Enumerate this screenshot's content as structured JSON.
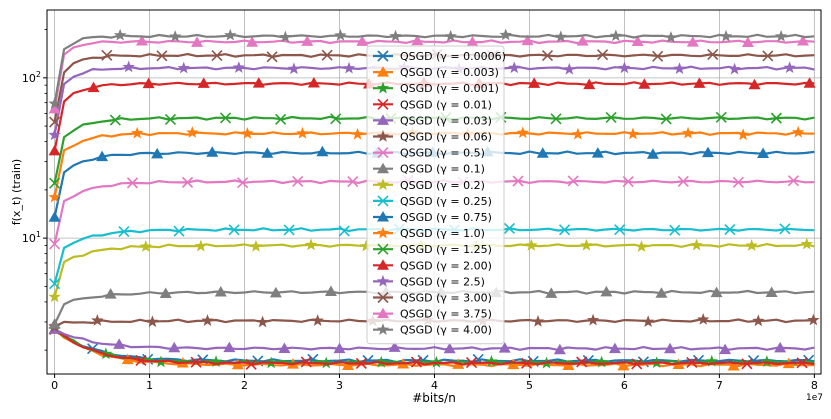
{
  "chart_data": {
    "type": "line",
    "title": "",
    "xlabel": "#bits/n",
    "ylabel": "f(x_t) (train)",
    "y_scale": "log",
    "x_multiplier_label": "1e7",
    "xlim": [
      -0.08,
      8.07
    ],
    "ylim": [
      1.42,
      265
    ],
    "x_ticks": [
      0,
      1,
      2,
      3,
      4,
      5,
      6,
      7,
      8
    ],
    "x_tick_labels": [
      "0",
      "1",
      "2",
      "3",
      "4",
      "5",
      "6",
      "7",
      "8"
    ],
    "y_major_ticks": [
      10,
      100
    ],
    "y_major_tick_labels": [
      "10^1",
      "10^2"
    ],
    "grid": true,
    "legend_position": "center",
    "series": [
      {
        "name": "QSGD (γ = 0.0006)",
        "color": "#1f77b4",
        "marker": "x",
        "start": 2.7,
        "end": 1.72,
        "saturation": 2.0,
        "decay": true,
        "x_end": 8.0
      },
      {
        "name": "QSGD (γ = 0.003)",
        "color": "#ff7f0e",
        "marker": "triangle",
        "start": 2.7,
        "end": 1.62,
        "saturation": 2.0,
        "decay": true,
        "x_end": 8.0
      },
      {
        "name": "QSGD (γ = 0.001)",
        "color": "#2ca02c",
        "marker": "star",
        "start": 2.7,
        "end": 1.68,
        "saturation": 2.0,
        "decay": true,
        "x_end": 8.0
      },
      {
        "name": "QSGD (γ = 0.01)",
        "color": "#d62728",
        "marker": "x",
        "start": 2.7,
        "end": 1.66,
        "saturation": 2.0,
        "decay": true,
        "x_end": 8.0
      },
      {
        "name": "QSGD (γ = 0.03)",
        "color": "#9467bd",
        "marker": "triangle",
        "start": 2.7,
        "end": 2.05,
        "saturation": 2.0,
        "decay": true,
        "x_end": 8.0
      },
      {
        "name": "QSGD (γ = 0.06)",
        "color": "#8c564b",
        "marker": "star",
        "start": 2.8,
        "end": 3.05,
        "saturation": 1.5,
        "decay": false,
        "x_end": 8.0
      },
      {
        "name": "QSGD (γ = 0.5)",
        "color": "#e377c2",
        "marker": "x",
        "start": 9.2,
        "end": 22.5,
        "saturation": 0.9,
        "decay": false,
        "x_end": 8.0
      },
      {
        "name": "QSGD (γ = 0.1)",
        "color": "#7f7f7f",
        "marker": "triangle",
        "start": 2.9,
        "end": 4.6,
        "saturation": 1.2,
        "decay": false,
        "x_end": 8.0
      },
      {
        "name": "QSGD (γ = 0.2)",
        "color": "#bcbd22",
        "marker": "star",
        "start": 4.3,
        "end": 9.0,
        "saturation": 1.0,
        "decay": false,
        "x_end": 8.0
      },
      {
        "name": "QSGD (γ = 0.25)",
        "color": "#17becf",
        "marker": "x",
        "start": 5.2,
        "end": 11.3,
        "saturation": 1.0,
        "decay": false,
        "x_end": 8.0
      },
      {
        "name": "QSGD (γ = 0.75)",
        "color": "#1f77b4",
        "marker": "triangle",
        "start": 13.5,
        "end": 34.0,
        "saturation": 0.8,
        "decay": false,
        "x_end": 8.0
      },
      {
        "name": "QSGD (γ = 1.0)",
        "color": "#ff7f0e",
        "marker": "star",
        "start": 18.0,
        "end": 45.0,
        "saturation": 0.7,
        "decay": false,
        "x_end": 8.0
      },
      {
        "name": "QSGD (γ = 1.25)",
        "color": "#2ca02c",
        "marker": "x",
        "start": 22.0,
        "end": 56.0,
        "saturation": 0.7,
        "decay": false,
        "x_end": 8.0
      },
      {
        "name": "QSGD (γ = 2.00)",
        "color": "#d62728",
        "marker": "triangle",
        "start": 35.0,
        "end": 92.0,
        "saturation": 0.6,
        "decay": false,
        "x_end": 8.0
      },
      {
        "name": "QSGD (γ = 2.5)",
        "color": "#9467bd",
        "marker": "star",
        "start": 44.0,
        "end": 115.0,
        "saturation": 0.5,
        "decay": false,
        "x_end": 8.0
      },
      {
        "name": "QSGD (γ = 3.00)",
        "color": "#8c564b",
        "marker": "x",
        "start": 53.0,
        "end": 138.0,
        "saturation": 0.5,
        "decay": false,
        "x_end": 8.0
      },
      {
        "name": "QSGD (γ = 3.75)",
        "color": "#e377c2",
        "marker": "triangle",
        "start": 64.0,
        "end": 168.0,
        "saturation": 0.4,
        "decay": false,
        "x_end": 8.0
      },
      {
        "name": "QSGD (γ = 4.00)",
        "color": "#7f7f7f",
        "marker": "star",
        "start": 69.0,
        "end": 182.0,
        "saturation": 0.4,
        "decay": false,
        "x_end": 8.0
      }
    ]
  }
}
